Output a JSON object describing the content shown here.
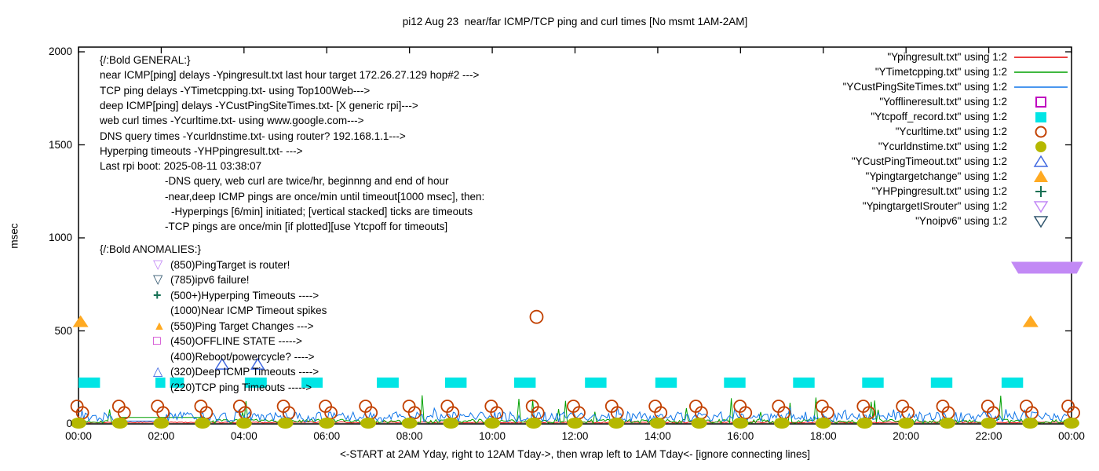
{
  "title": "pi12 Aug 23  near/far ICMP/TCP ping and curl times [No msmt 1AM-2AM]",
  "axes": {
    "ylabel": "msec",
    "xlabel": "<-START at 2AM Yday, right to 12AM Tday->, then wrap left to 1AM Tday<- [ignore connecting lines]",
    "y_ticks": [
      0,
      500,
      1000,
      1500,
      2000
    ],
    "x_ticks": [
      "00:00",
      "02:00",
      "04:00",
      "06:00",
      "08:00",
      "10:00",
      "12:00",
      "14:00",
      "16:00",
      "18:00",
      "20:00",
      "22:00",
      "00:00"
    ],
    "y_range": [
      0,
      2000
    ],
    "x_hours": 24
  },
  "info_block": {
    "lines": [
      {
        "text": "{/:Bold GENERAL:}",
        "indent": 0
      },
      {
        "text": "near ICMP[ping] delays -Ypingresult.txt last hour target 172.26.27.129 hop#2 --->",
        "indent": 0
      },
      {
        "text": "TCP ping delays -YTimetcpping.txt- using Top100Web--->",
        "indent": 0
      },
      {
        "text": "deep ICMP[ping] delays -YCustPingSiteTimes.txt- [X generic rpi]--->",
        "indent": 0
      },
      {
        "text": "web curl times -Ycurltime.txt- using www.google.com--->",
        "indent": 0
      },
      {
        "text": "DNS query times -Ycurldnstime.txt- using router? 192.168.1.1--->",
        "indent": 0
      },
      {
        "text": "Hyperping timeouts -YHPpingresult.txt- --->",
        "indent": 0
      },
      {
        "text": "Last rpi boot: 2025-08-11 03:38:07",
        "indent": 0
      },
      {
        "text": "-DNS query, web curl are twice/hr, beginnng and end of hour",
        "indent": 1
      },
      {
        "text": "-near,deep ICMP pings are once/min until timeout[1000 msec], then:",
        "indent": 1
      },
      {
        "text": "-Hyperpings [6/min] initiated; [vertical stacked] ticks are timeouts",
        "indent": 2
      },
      {
        "text": "-TCP pings are once/min [if plotted][use Ytcpoff for timeouts]",
        "indent": 1
      }
    ]
  },
  "anomaly_block": {
    "lines": [
      {
        "glyph": "",
        "glyph_color": "",
        "text": "{/:Bold ANOMALIES:}",
        "header": true
      },
      {
        "glyph": "▽",
        "glyph_color": "#c289f5",
        "text": "(850)PingTarget is router!",
        "header": false
      },
      {
        "glyph": "▽",
        "glyph_color": "#31566e",
        "text": "(785)ipv6 failure!",
        "header": false
      },
      {
        "glyph": "+",
        "glyph_color": "#157054",
        "text": "(500+)Hyperping Timeouts ---->",
        "header": false
      },
      {
        "glyph": "",
        "glyph_color": "",
        "text": "(1000)Near ICMP Timeout spikes",
        "header": false
      },
      {
        "glyph": "▲",
        "glyph_color": "#ffaa22",
        "text": "(550)Ping Target Changes --->",
        "header": false
      },
      {
        "glyph": "□",
        "glyph_color": "#bf00bf",
        "text": "(450)OFFLINE STATE ----->",
        "header": false
      },
      {
        "glyph": "",
        "glyph_color": "",
        "text": "(400)Reboot/powercycle? ---->",
        "header": false
      },
      {
        "glyph": "△",
        "glyph_color": "#4169e1",
        "text": "(320)Deep ICMP Timeouts ---->",
        "header": false
      },
      {
        "glyph": "",
        "glyph_color": "",
        "text": "(220)TCP ping Timeouts ----->",
        "header": false
      }
    ]
  },
  "legend": {
    "entries": [
      {
        "label": "\"Ypingresult.txt\" using 1:2",
        "sample": "line",
        "marker": "",
        "color": "#e60000"
      },
      {
        "label": "\"YTimetcpping.txt\" using 1:2",
        "sample": "line",
        "marker": "",
        "color": "#00a000"
      },
      {
        "label": "\"YCustPingSiteTimes.txt\" using 1:2",
        "sample": "line",
        "marker": "",
        "color": "#0f75e8"
      },
      {
        "label": "\"Yofflineresult.txt\" using 1:2",
        "sample": "marker",
        "marker": "open-square",
        "color": "#bf00bf"
      },
      {
        "label": "\"Ytcpoff_record.txt\" using 1:2",
        "sample": "marker",
        "marker": "filled-square",
        "color": "#00e5e5"
      },
      {
        "label": "\"Ycurltime.txt\" using 1:2",
        "sample": "marker",
        "marker": "open-circle",
        "color": "#c24000"
      },
      {
        "label": "\"Ycurldnstime.txt\" using 1:2",
        "sample": "marker",
        "marker": "filled-circle",
        "color": "#b5b800"
      },
      {
        "label": "\"YCustPingTimeout.txt\" using 1:2",
        "sample": "marker",
        "marker": "open-triangle-up",
        "color": "#4169e1"
      },
      {
        "label": "\"Ypingtargetchange\" using 1:2",
        "sample": "marker",
        "marker": "filled-triangle-up",
        "color": "#ffaa22"
      },
      {
        "label": "\"YHPpingresult.txt\" using 1:2",
        "sample": "marker",
        "marker": "plus",
        "color": "#157054"
      },
      {
        "label": "\"YpingtargetISrouter\" using 1:2",
        "sample": "marker",
        "marker": "open-triangle-down",
        "color": "#c289f5"
      },
      {
        "label": "\"Ynoipv6\" using 1:2",
        "sample": "marker",
        "marker": "open-triangle-down",
        "color": "#31566e"
      }
    ]
  },
  "chart_data": {
    "type": "line",
    "x_range_hours": [
      0,
      24
    ],
    "ylim": [
      0,
      2000
    ],
    "title": "pi12 Aug 23  near/far ICMP/TCP ping and curl times [No msmt 1AM-2AM]",
    "xlabel": "<-START at 2AM Yday, right to 12AM Tday->, then wrap left to 1AM Tday<- [ignore connecting lines]",
    "ylabel": "msec",
    "grid": false,
    "legend_position": "top-right-outside-style",
    "series": [
      {
        "name": "Ypingresult.txt",
        "kind": "noisy-line",
        "color": "#e60000",
        "sim": {
          "seed": 99,
          "base_msec": 5,
          "amp_msec": 6,
          "spike_p": 0,
          "spike_min": 0,
          "spike_max": 0
        }
      },
      {
        "name": "YTimetcpping.txt",
        "kind": "noisy-line",
        "color": "#00a000",
        "sim": {
          "seed": 7,
          "base_msec": 3,
          "amp_msec": 22,
          "spike_p": 0.055,
          "spike_min": 60,
          "spike_max": 160
        },
        "gap_hours": [
          1.0,
          3.05
        ],
        "gap_value_msec": 35
      },
      {
        "name": "YCustPingSiteTimes.txt",
        "kind": "noisy-line",
        "color": "#0f75e8",
        "sim": {
          "seed": 13,
          "base_msec": 10,
          "amp_msec": 55,
          "spike_p": 0.015,
          "spike_min": 70,
          "spike_max": 95
        },
        "gap_hours": [
          1.0,
          2.1
        ],
        "gap_value_msec": 15
      },
      {
        "name": "Yofflineresult.txt",
        "kind": "points",
        "marker": "open-square",
        "color": "#bf00bf",
        "points": []
      },
      {
        "name": "Ytcpoff_record.txt",
        "kind": "blocks",
        "color": "#00e5e5",
        "level_msec": 220,
        "blocks_hours": [
          [
            0.0,
            0.52
          ],
          [
            1.86,
            2.1
          ],
          [
            2.21,
            2.55
          ],
          [
            4.02,
            4.55
          ],
          [
            5.39,
            5.9
          ],
          [
            7.21,
            7.74
          ],
          [
            8.86,
            9.38
          ],
          [
            10.53,
            11.05
          ],
          [
            12.24,
            12.76
          ],
          [
            13.94,
            14.46
          ],
          [
            15.6,
            16.12
          ],
          [
            17.27,
            17.79
          ],
          [
            18.94,
            19.46
          ],
          [
            20.6,
            21.12
          ],
          [
            22.31,
            22.83
          ]
        ]
      },
      {
        "name": "Ycurltime.txt",
        "kind": "hourly-pairs",
        "marker": "open-circle",
        "color": "#c24000",
        "hours_from": 0,
        "hours_to": 24,
        "msec_low": 60,
        "msec_high": 95,
        "extra_points": [
          {
            "hour": 11.07,
            "msec": 575
          }
        ]
      },
      {
        "name": "Ycurldnstime.txt",
        "kind": "hourly-blobs",
        "marker": "filled-circle",
        "color": "#b5b800",
        "hours_from": 0,
        "hours_to": 24,
        "msec": 0
      },
      {
        "name": "YCustPingTimeout.txt",
        "kind": "points",
        "marker": "open-triangle-up",
        "color": "#4169e1",
        "level_msec": 320,
        "point_hours": [
          3.47,
          4.33
        ]
      },
      {
        "name": "Ypingtargetchange",
        "kind": "points",
        "marker": "filled-triangle-up",
        "color": "#ffaa22",
        "level_msec": 550,
        "point_hours": [
          0.05,
          23.01
        ]
      },
      {
        "name": "YHPpingresult.txt",
        "kind": "points",
        "marker": "plus",
        "color": "#157054",
        "point_hours": []
      },
      {
        "name": "YpingtargetISrouter",
        "kind": "band",
        "marker": "open-triangle-down",
        "color": "#c289f5",
        "level_msec": 850,
        "band_hours": [
          22.54,
          24.28
        ]
      },
      {
        "name": "Ynoipv6",
        "kind": "points",
        "marker": "open-triangle-down",
        "color": "#31566e",
        "point_hours": []
      }
    ]
  }
}
